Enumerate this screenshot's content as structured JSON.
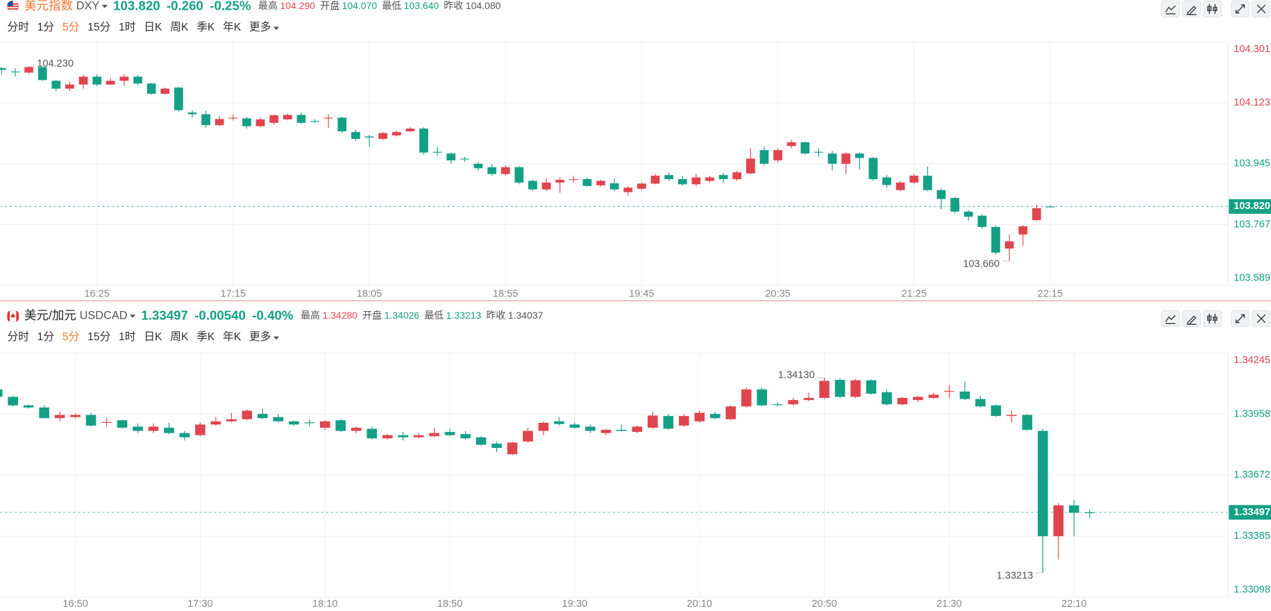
{
  "chart_data": [
    {
      "type": "candlestick",
      "header": {
        "name": "美元指数",
        "name_color": "#f07a32",
        "symbol": "DXY",
        "price": {
          "value": 103.82,
          "label": "103.820"
        },
        "change": "-0.260",
        "change_pct": "-0.25%",
        "stats": [
          {
            "name": "最高",
            "value": 104.29,
            "label": "104.290"
          },
          {
            "name": "开盘",
            "value": 104.07,
            "label": "104.070"
          },
          {
            "name": "最低",
            "value": 103.64,
            "label": "103.640"
          }
        ],
        "prev_close": {
          "name": "昨收",
          "value": 104.08,
          "label": "104.080"
        }
      },
      "toolbar": [
        "分时",
        "1分",
        "5分",
        "15分",
        "1时",
        "日K",
        "周K",
        "季K",
        "年K",
        "更多"
      ],
      "active_interval": "5分",
      "up_color": "#e0454f",
      "down_color": "#14a085",
      "flat_color": "#666666",
      "ylim": [
        103.589,
        104.301
      ],
      "yticks": [
        104.301,
        104.123,
        103.945,
        103.767,
        103.589
      ],
      "grid": true,
      "high_mark": {
        "value": 104.23,
        "label": "104.230"
      },
      "low_mark": {
        "value": 103.66,
        "label": "103.660"
      },
      "categories": [
        null,
        null,
        null,
        null,
        null,
        null,
        null,
        "16:25",
        null,
        null,
        null,
        null,
        null,
        null,
        null,
        null,
        null,
        "17:15",
        null,
        null,
        null,
        null,
        null,
        null,
        null,
        null,
        null,
        "18:05",
        null,
        null,
        null,
        null,
        null,
        null,
        null,
        null,
        null,
        "18:55",
        null,
        null,
        null,
        null,
        null,
        null,
        null,
        null,
        null,
        "19:45",
        null,
        null,
        null,
        null,
        null,
        null,
        null,
        null,
        null,
        "20:35",
        null,
        null,
        null,
        null,
        null,
        null,
        null,
        null,
        null,
        "21:25",
        null,
        null,
        null,
        null,
        null,
        null,
        null,
        null,
        null,
        "22:15"
      ],
      "candles": [
        [
          104.225,
          104.228,
          104.205,
          104.22
        ],
        [
          104.215,
          104.225,
          104.2,
          104.215
        ],
        [
          104.212,
          104.23,
          104.208,
          104.228
        ],
        [
          104.228,
          104.229,
          104.188,
          104.19
        ],
        [
          104.188,
          104.19,
          104.158,
          104.165
        ],
        [
          104.165,
          104.185,
          104.158,
          104.177
        ],
        [
          104.177,
          104.205,
          104.165,
          104.2
        ],
        [
          104.2,
          104.207,
          104.172,
          104.177
        ],
        [
          104.177,
          104.195,
          104.175,
          104.188
        ],
        [
          104.188,
          104.207,
          104.172,
          104.2
        ],
        [
          104.2,
          104.205,
          104.175,
          104.18
        ],
        [
          104.18,
          104.182,
          104.147,
          104.15
        ],
        [
          104.15,
          104.168,
          104.148,
          104.165
        ],
        [
          104.168,
          104.17,
          104.098,
          104.102
        ],
        [
          104.095,
          104.102,
          104.08,
          104.09
        ],
        [
          104.09,
          104.1,
          104.05,
          104.058
        ],
        [
          104.058,
          104.085,
          104.055,
          104.076
        ],
        [
          104.078,
          104.09,
          104.072,
          104.08
        ],
        [
          104.078,
          104.082,
          104.048,
          104.055
        ],
        [
          104.055,
          104.08,
          104.052,
          104.075
        ],
        [
          104.065,
          104.09,
          104.06,
          104.087
        ],
        [
          104.075,
          104.092,
          104.072,
          104.088
        ],
        [
          104.088,
          104.095,
          104.062,
          104.065
        ],
        [
          104.07,
          104.075,
          104.065,
          104.068
        ],
        [
          104.078,
          104.09,
          104.05,
          104.08
        ],
        [
          104.08,
          104.082,
          104.035,
          104.04
        ],
        [
          104.038,
          104.045,
          104.012,
          104.018
        ],
        [
          104.025,
          104.03,
          103.995,
          104.022
        ],
        [
          104.018,
          104.038,
          104.015,
          104.035
        ],
        [
          104.028,
          104.042,
          104.025,
          104.038
        ],
        [
          104.04,
          104.052,
          104.038,
          104.048
        ],
        [
          104.048,
          104.052,
          103.972,
          103.978
        ],
        [
          103.98,
          103.995,
          103.968,
          103.978
        ],
        [
          103.975,
          103.978,
          103.945,
          103.955
        ],
        [
          103.96,
          103.965,
          103.95,
          103.958
        ],
        [
          103.945,
          103.95,
          103.925,
          103.932
        ],
        [
          103.935,
          103.945,
          103.91,
          103.915
        ],
        [
          103.915,
          103.94,
          103.91,
          103.935
        ],
        [
          103.935,
          103.938,
          103.885,
          103.89
        ],
        [
          103.895,
          103.898,
          103.865,
          103.87
        ],
        [
          103.87,
          103.902,
          103.865,
          103.89
        ],
        [
          103.89,
          103.905,
          103.86,
          103.898
        ],
        [
          103.898,
          103.91,
          103.89,
          103.9
        ],
        [
          103.9,
          103.905,
          103.878,
          103.88
        ],
        [
          103.882,
          103.898,
          103.878,
          103.895
        ],
        [
          103.888,
          103.902,
          103.865,
          103.87
        ],
        [
          103.862,
          103.88,
          103.852,
          103.875
        ],
        [
          103.872,
          103.89,
          103.868,
          103.887
        ],
        [
          103.887,
          103.915,
          103.885,
          103.91
        ],
        [
          103.912,
          103.92,
          103.895,
          103.9
        ],
        [
          103.9,
          103.91,
          103.88,
          103.885
        ],
        [
          103.885,
          103.915,
          103.88,
          103.905
        ],
        [
          103.895,
          103.91,
          103.89,
          103.905
        ],
        [
          103.912,
          103.918,
          103.89,
          103.9
        ],
        [
          103.9,
          103.925,
          103.895,
          103.92
        ],
        [
          103.917,
          103.99,
          103.915,
          103.96
        ],
        [
          103.985,
          103.995,
          103.94,
          103.945
        ],
        [
          103.955,
          103.99,
          103.948,
          103.985
        ],
        [
          103.997,
          104.015,
          103.99,
          104.008
        ],
        [
          104.008,
          104.01,
          103.972,
          103.975
        ],
        [
          103.98,
          103.99,
          103.965,
          103.98
        ],
        [
          103.975,
          103.982,
          103.925,
          103.945
        ],
        [
          103.945,
          103.98,
          103.915,
          103.975
        ],
        [
          103.975,
          103.978,
          103.928,
          103.962
        ],
        [
          103.962,
          103.965,
          103.895,
          103.9
        ],
        [
          103.905,
          103.912,
          103.875,
          103.883
        ],
        [
          103.868,
          103.895,
          103.865,
          103.89
        ],
        [
          103.89,
          103.915,
          103.885,
          103.91
        ],
        [
          103.91,
          103.937,
          103.865,
          103.868
        ],
        [
          103.868,
          103.872,
          103.812,
          103.842
        ],
        [
          103.845,
          103.848,
          103.8,
          103.805
        ],
        [
          103.805,
          103.81,
          103.778,
          103.79
        ],
        [
          103.793,
          103.798,
          103.755,
          103.76
        ],
        [
          103.76,
          103.765,
          103.68,
          103.685
        ],
        [
          103.697,
          103.738,
          103.66,
          103.718
        ],
        [
          103.738,
          103.765,
          103.705,
          103.762
        ],
        [
          103.78,
          103.825,
          103.778,
          103.815
        ],
        [
          103.82,
          103.823,
          103.817,
          103.82
        ]
      ]
    },
    {
      "type": "candlestick",
      "header": {
        "name": "美元/加元",
        "name_color": "#222222",
        "symbol": "USDCAD",
        "price": {
          "value": 1.33497,
          "label": "1.33497"
        },
        "change": "-0.00540",
        "change_pct": "-0.40%",
        "stats": [
          {
            "name": "最高",
            "value": 1.3428,
            "label": "1.34280"
          },
          {
            "name": "开盘",
            "value": 1.34026,
            "label": "1.34026"
          },
          {
            "name": "最低",
            "value": 1.33213,
            "label": "1.33213"
          }
        ],
        "prev_close": {
          "name": "昨收",
          "value": 1.34037,
          "label": "1.34037"
        }
      },
      "toolbar": [
        "分时",
        "1分",
        "5分",
        "15分",
        "1时",
        "日K",
        "周K",
        "季K",
        "年K",
        "更多"
      ],
      "active_interval": "5分",
      "up_color": "#e0454f",
      "down_color": "#14a085",
      "flat_color": "#666666",
      "ylim": [
        1.33098,
        1.34245
      ],
      "yticks": [
        1.34245,
        1.33958,
        1.33672,
        1.33385,
        1.33098
      ],
      "grid": true,
      "high_mark": {
        "value": 1.3413,
        "label": "1.34130"
      },
      "low_mark": {
        "value": 1.33213,
        "label": "1.33213"
      },
      "categories": [
        null,
        null,
        null,
        null,
        null,
        "16:50",
        null,
        null,
        null,
        null,
        null,
        null,
        null,
        "17:30",
        null,
        null,
        null,
        null,
        null,
        null,
        null,
        "18:10",
        null,
        null,
        null,
        null,
        null,
        null,
        null,
        "18:50",
        null,
        null,
        null,
        null,
        null,
        null,
        null,
        "19:30",
        null,
        null,
        null,
        null,
        null,
        null,
        null,
        "20:10",
        null,
        null,
        null,
        null,
        null,
        null,
        null,
        "20:50",
        null,
        null,
        null,
        null,
        null,
        null,
        null,
        "21:30",
        null,
        null,
        null,
        null,
        null,
        null,
        null,
        "22:10",
        null
      ],
      "candles": [
        [
          1.34075,
          1.34085,
          1.3403,
          1.3404
        ],
        [
          1.3404,
          1.34045,
          1.33995,
          1.34
        ],
        [
          1.34,
          1.34005,
          1.33985,
          1.3399
        ],
        [
          1.3399,
          1.34,
          1.33938,
          1.3394
        ],
        [
          1.3394,
          1.3397,
          1.33925,
          1.33955
        ],
        [
          1.33945,
          1.33962,
          1.3394,
          1.33955
        ],
        [
          1.33955,
          1.33965,
          1.339,
          1.33905
        ],
        [
          1.3392,
          1.3394,
          1.339,
          1.33922
        ],
        [
          1.3393,
          1.33932,
          1.3389,
          1.33895
        ],
        [
          1.339,
          1.33915,
          1.3387,
          1.3388
        ],
        [
          1.3388,
          1.33915,
          1.3387,
          1.339
        ],
        [
          1.33895,
          1.33918,
          1.33865,
          1.3387
        ],
        [
          1.3387,
          1.3388,
          1.33835,
          1.3385
        ],
        [
          1.3386,
          1.3392,
          1.33855,
          1.3391
        ],
        [
          1.3391,
          1.33945,
          1.33905,
          1.33925
        ],
        [
          1.33925,
          1.33965,
          1.3392,
          1.33935
        ],
        [
          1.33935,
          1.3398,
          1.3393,
          1.33975
        ],
        [
          1.3396,
          1.33985,
          1.33935,
          1.3394
        ],
        [
          1.33945,
          1.3396,
          1.3392,
          1.33925
        ],
        [
          1.33925,
          1.3393,
          1.33905,
          1.3391
        ],
        [
          1.3392,
          1.33935,
          1.339,
          1.33918
        ],
        [
          1.33895,
          1.3393,
          1.33885,
          1.33925
        ],
        [
          1.3393,
          1.33935,
          1.33875,
          1.3388
        ],
        [
          1.3388,
          1.339,
          1.3387,
          1.33895
        ],
        [
          1.3389,
          1.339,
          1.3384,
          1.33845
        ],
        [
          1.33845,
          1.33865,
          1.3384,
          1.3386
        ],
        [
          1.3386,
          1.33875,
          1.33835,
          1.3385
        ],
        [
          1.3385,
          1.3387,
          1.33845,
          1.3386
        ],
        [
          1.33855,
          1.33895,
          1.3385,
          1.3387
        ],
        [
          1.33875,
          1.3389,
          1.33855,
          1.3386
        ],
        [
          1.33865,
          1.3388,
          1.3384,
          1.33845
        ],
        [
          1.3385,
          1.33855,
          1.3381,
          1.33815
        ],
        [
          1.3382,
          1.3383,
          1.3378,
          1.338
        ],
        [
          1.3377,
          1.3383,
          1.33765,
          1.33825
        ],
        [
          1.3383,
          1.33895,
          1.33825,
          1.3388
        ],
        [
          1.3388,
          1.33925,
          1.3386,
          1.33918
        ],
        [
          1.33925,
          1.33945,
          1.33905,
          1.33912
        ],
        [
          1.3391,
          1.3392,
          1.3389,
          1.33895
        ],
        [
          1.339,
          1.3391,
          1.3387,
          1.3388
        ],
        [
          1.3387,
          1.3389,
          1.3386,
          1.33885
        ],
        [
          1.33885,
          1.3391,
          1.33878,
          1.3388
        ],
        [
          1.33875,
          1.33905,
          1.3387,
          1.339
        ],
        [
          1.33895,
          1.3397,
          1.3389,
          1.33952
        ],
        [
          1.3395,
          1.3396,
          1.33885,
          1.3389
        ],
        [
          1.33905,
          1.3396,
          1.339,
          1.3395
        ],
        [
          1.33925,
          1.33975,
          1.3392,
          1.33965
        ],
        [
          1.3396,
          1.3397,
          1.33935,
          1.3394
        ],
        [
          1.33935,
          1.34,
          1.3393,
          1.33995
        ],
        [
          1.33995,
          1.34085,
          1.3399,
          1.34075
        ],
        [
          1.34075,
          1.34085,
          1.33995,
          1.34
        ],
        [
          1.34005,
          1.34015,
          1.33995,
          1.34005
        ],
        [
          1.34005,
          1.34035,
          1.34,
          1.34025
        ],
        [
          1.34025,
          1.3406,
          1.3402,
          1.34035
        ],
        [
          1.34035,
          1.3413,
          1.3403,
          1.34115
        ],
        [
          1.3412,
          1.34128,
          1.34035,
          1.3404
        ],
        [
          1.3404,
          1.34125,
          1.34035,
          1.34118
        ],
        [
          1.34118,
          1.34122,
          1.3405,
          1.34055
        ],
        [
          1.34062,
          1.34075,
          1.34,
          1.34005
        ],
        [
          1.34005,
          1.3404,
          1.34,
          1.34035
        ],
        [
          1.34025,
          1.34045,
          1.34015,
          1.3404
        ],
        [
          1.34035,
          1.3406,
          1.3403,
          1.3405
        ],
        [
          1.34065,
          1.34095,
          1.34035,
          1.34068
        ],
        [
          1.34065,
          1.3411,
          1.34025,
          1.3403
        ],
        [
          1.3403,
          1.34045,
          1.3399,
          1.33995
        ],
        [
          1.34,
          1.34005,
          1.33945,
          1.3395
        ],
        [
          1.3395,
          1.33975,
          1.3392,
          1.33955
        ],
        [
          1.33955,
          1.3396,
          1.3388,
          1.33885
        ],
        [
          1.3388,
          1.3389,
          1.33213,
          1.33385
        ],
        [
          1.33385,
          1.3354,
          1.33275,
          1.3353
        ],
        [
          1.3353,
          1.33555,
          1.33385,
          1.33495
        ],
        [
          1.33497,
          1.3351,
          1.3347,
          1.33497
        ]
      ]
    }
  ]
}
